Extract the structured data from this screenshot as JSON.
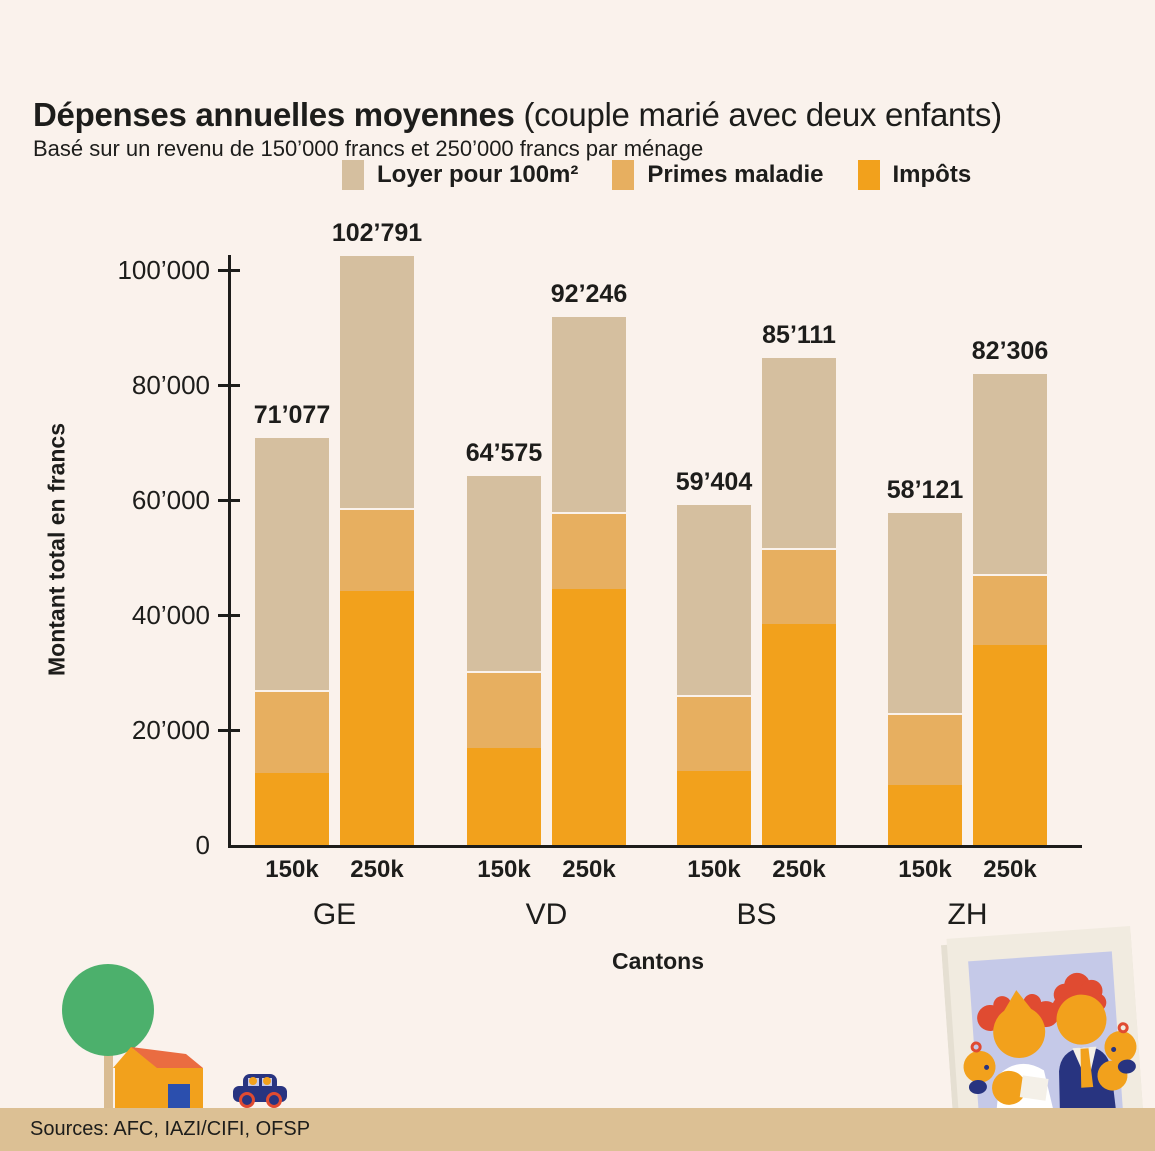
{
  "header": {
    "title_bold": "Dépenses annuelles moyennes",
    "title_normal": " (couple marié avec deux enfants)",
    "subtitle": "Basé sur un revenu de 150’000 francs et 250’000 francs par ménage"
  },
  "legend": [
    {
      "key": "loyer",
      "label": "Loyer pour 100m²",
      "color": "#d5bf9f"
    },
    {
      "key": "primes",
      "label": "Primes maladie",
      "color": "#e7af60"
    },
    {
      "key": "impots",
      "label": "Impôts",
      "color": "#f2a11c"
    }
  ],
  "chart_data": {
    "type": "bar",
    "stacked": true,
    "title": "Dépenses annuelles moyennes (couple marié avec deux enfants)",
    "subtitle": "Basé sur un revenu de 150’000 francs et 250’000 francs par ménage",
    "xlabel": "Cantons",
    "ylabel": "Montant total en francs",
    "ylim": [
      0,
      105000
    ],
    "grid": false,
    "legend_position": "top",
    "yticks": [
      0,
      20000,
      40000,
      60000,
      80000,
      100000
    ],
    "ytick_labels": [
      "0",
      "20’000",
      "40’000",
      "60’000",
      "80’000",
      "100’000"
    ],
    "categories": [
      "GE",
      "VD",
      "BS",
      "ZH"
    ],
    "income_labels": [
      "150k",
      "250k"
    ],
    "series_keys_bottom_to_top": [
      "impots",
      "primes",
      "loyer"
    ],
    "bars": [
      {
        "canton": "GE",
        "income": "150k",
        "total": 71077,
        "total_label": "71’077",
        "impots": 12477,
        "primes": 14500,
        "loyer": 44100
      },
      {
        "canton": "GE",
        "income": "250k",
        "total": 102791,
        "total_label": "102’791",
        "impots": 44191,
        "primes": 14500,
        "loyer": 44100
      },
      {
        "canton": "VD",
        "income": "150k",
        "total": 64575,
        "total_label": "64’575",
        "impots": 16875,
        "primes": 13400,
        "loyer": 34300
      },
      {
        "canton": "VD",
        "income": "250k",
        "total": 92246,
        "total_label": "92’246",
        "impots": 44546,
        "primes": 13400,
        "loyer": 34300
      },
      {
        "canton": "BS",
        "income": "150k",
        "total": 59404,
        "total_label": "59’404",
        "impots": 12804,
        "primes": 13200,
        "loyer": 33400
      },
      {
        "canton": "BS",
        "income": "250k",
        "total": 85111,
        "total_label": "85’111",
        "impots": 38511,
        "primes": 13200,
        "loyer": 33400
      },
      {
        "canton": "ZH",
        "income": "150k",
        "total": 58121,
        "total_label": "58’121",
        "impots": 10521,
        "primes": 12400,
        "loyer": 35200
      },
      {
        "canton": "ZH",
        "income": "250k",
        "total": 82306,
        "total_label": "82’306",
        "impots": 34706,
        "primes": 12400,
        "loyer": 35200
      }
    ]
  },
  "footer": {
    "sources": "Sources: AFC, IAZI/CIFI, OFSP"
  },
  "colors": {
    "background": "#faf2ec",
    "text": "#1d1d1b",
    "loyer": "#d5bf9f",
    "primes": "#e7af60",
    "impots": "#f2a11c",
    "footer_bar": "#dcc094",
    "tree_green": "#4cb06c",
    "roof_red": "#ea6c41",
    "navy_blue": "#283480",
    "door_blue": "#2b4fae",
    "photo_lavender": "#c5c9e8",
    "photo_frame": "#f1ebe0",
    "hair_red": "#e04b31"
  }
}
